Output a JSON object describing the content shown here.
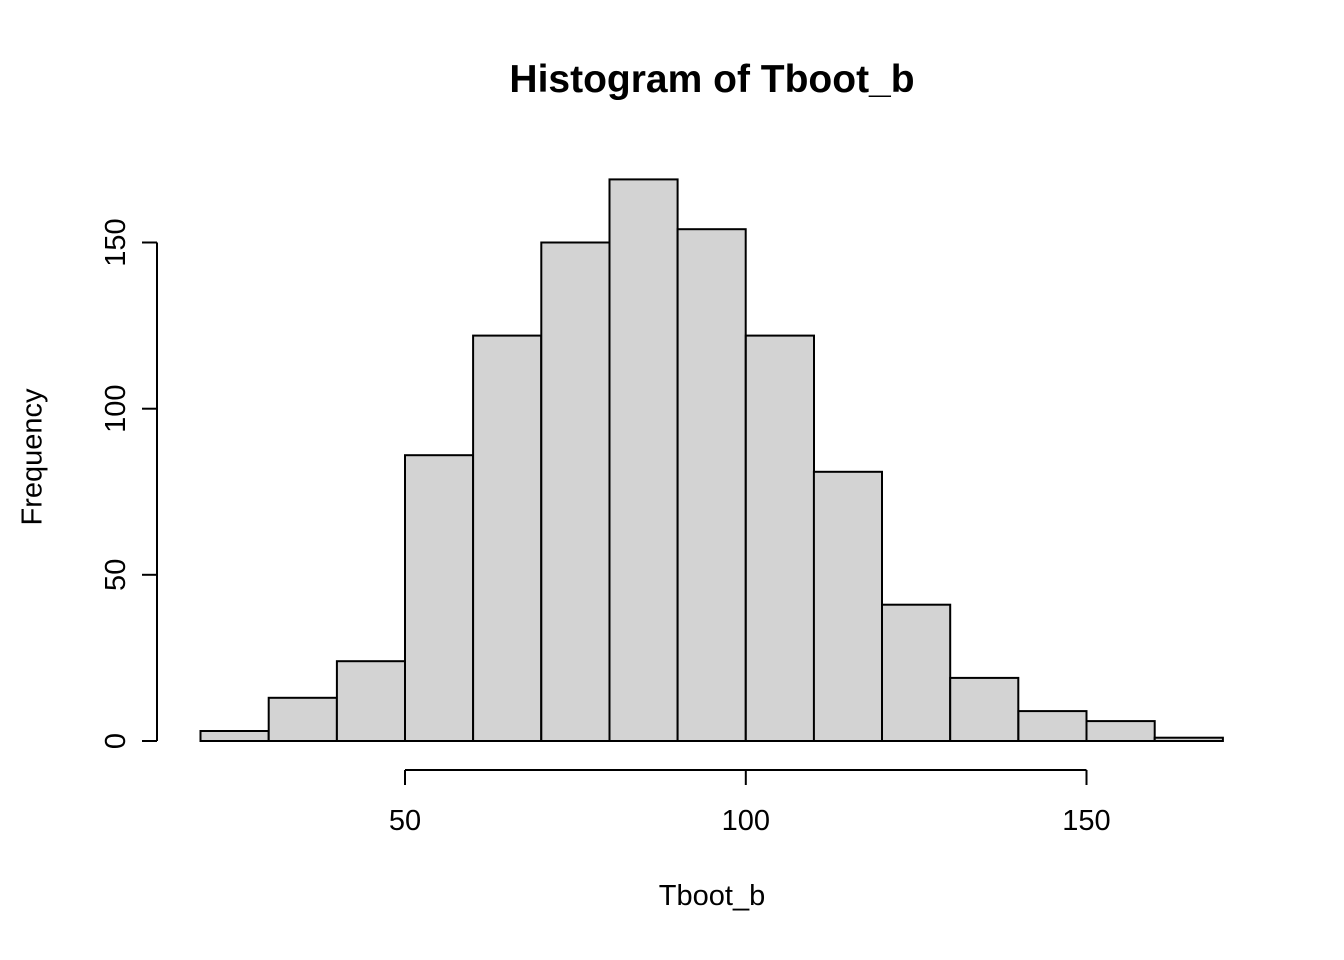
{
  "figure": {
    "title": "Histogram of Tboot_b",
    "xlabel": "Tboot_b",
    "ylabel": "Frequency"
  },
  "chart_data": {
    "type": "bar",
    "subtype": "histogram",
    "title": "Histogram of Tboot_b",
    "xlabel": "Tboot_b",
    "ylabel": "Frequency",
    "bin_edges": [
      20,
      30,
      40,
      50,
      60,
      70,
      80,
      90,
      100,
      110,
      120,
      130,
      140,
      150,
      160,
      170
    ],
    "counts": [
      3,
      13,
      24,
      86,
      122,
      150,
      169,
      154,
      122,
      81,
      41,
      19,
      9,
      6,
      1
    ],
    "x_ticks": [
      50,
      100,
      150
    ],
    "y_ticks": [
      0,
      50,
      100,
      150
    ],
    "xlim": [
      20,
      170
    ],
    "ylim": [
      0,
      169
    ],
    "grid": false,
    "legend": null,
    "colors": {
      "bar_fill": "#d3d3d3",
      "bar_stroke": "#000000",
      "axis": "#000000",
      "text": "#000000",
      "background": "#ffffff"
    }
  }
}
